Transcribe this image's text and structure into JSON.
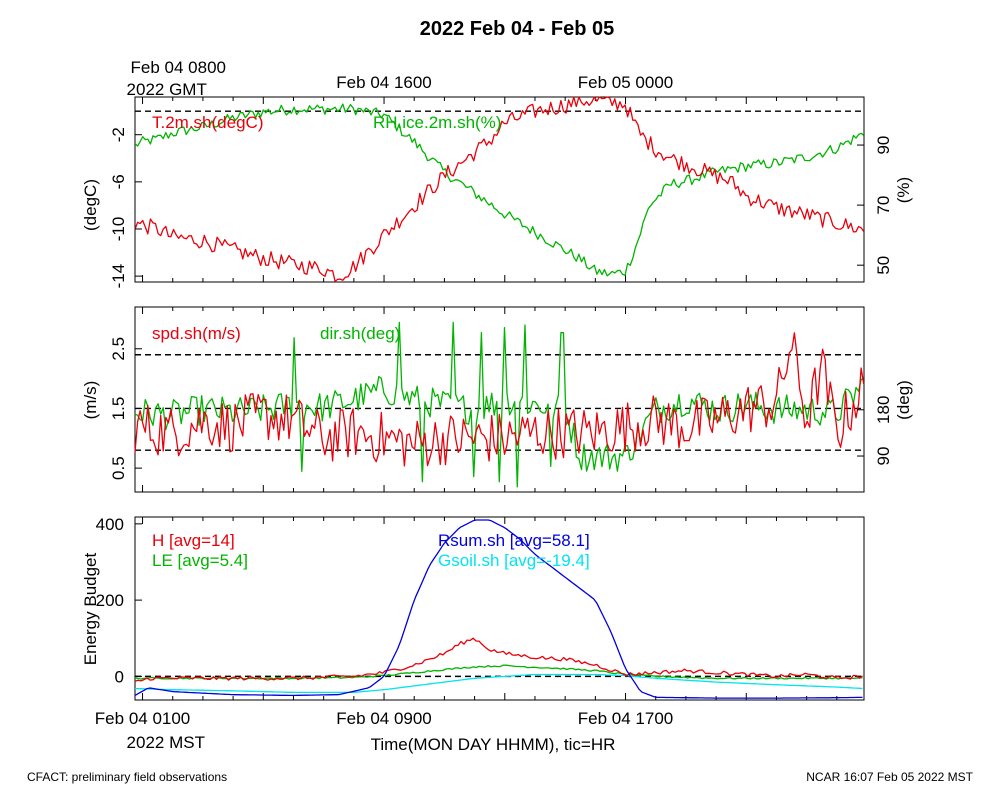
{
  "title": "2022 Feb 04 - Feb 05",
  "footer_left": "CFACT: preliminary field observations",
  "footer_right": "NCAR 16:07 Feb 05 2022 MST",
  "top_axis": {
    "ticks": [
      {
        "hour": 1,
        "line1": "Feb 04 0800",
        "line2": "2022 GMT"
      },
      {
        "hour": 9,
        "line1": "Feb 04 1600",
        "line2": ""
      },
      {
        "hour": 17,
        "line1": "Feb 05 0000",
        "line2": ""
      }
    ]
  },
  "bottom_axis": {
    "ticks": [
      {
        "hour": 1,
        "line1": "Feb 04 0100",
        "line2": "2022 MST"
      },
      {
        "hour": 9,
        "line1": "Feb 04 0900",
        "line2": ""
      },
      {
        "hour": 17,
        "line1": "Feb 04 1700",
        "line2": ""
      }
    ],
    "xlabel": "Time(MON DAY HHMM), tic=HR"
  },
  "colors": {
    "red": "#e8000b",
    "green": "#00b400",
    "blue": "#0000e0",
    "cyan": "#00e5ee",
    "black": "#000000"
  },
  "chart_data": [
    {
      "type": "line",
      "panel": "temperature-humidity",
      "x_unit": "hour (MST, Feb 04)",
      "xlim": [
        0.75,
        24.9
      ],
      "ylabel_left": "(degC)",
      "ylabel_right": "(%)",
      "ylim_left": [
        -14.5,
        1.2
      ],
      "ylim_right": [
        44.4,
        106
      ],
      "yticks_left": [
        -14,
        -10,
        -6,
        -2
      ],
      "yticks_right": [
        50,
        70,
        90
      ],
      "reference_lines": [
        {
          "axis": "left",
          "value": 0
        }
      ],
      "series": [
        {
          "name": "T.2m.sh(degC)",
          "color": "red",
          "axis": "left",
          "x": [
            0.75,
            1.5,
            2.0,
            3.0,
            4.0,
            5.0,
            6.0,
            7.0,
            7.5,
            8.0,
            9.0,
            10.0,
            11.0,
            12.0,
            12.5,
            13.0,
            14.0,
            15.0,
            15.5,
            16.0,
            17.0,
            17.2,
            17.5,
            18.0,
            18.5,
            19.0,
            20.0,
            20.5,
            21.0,
            22.0,
            23.0,
            24.0,
            24.9
          ],
          "y": [
            -9.5,
            -10.0,
            -10.7,
            -11.0,
            -11.8,
            -12.5,
            -13.0,
            -13.4,
            -14.0,
            -13.2,
            -10.5,
            -8.0,
            -5.5,
            -3.5,
            -2.5,
            -1.0,
            0.0,
            0.5,
            0.9,
            0.9,
            0.6,
            -0.6,
            -2.0,
            -3.2,
            -4.0,
            -4.5,
            -5.5,
            -6.0,
            -7.2,
            -8.2,
            -8.8,
            -9.5,
            -10.1
          ],
          "noise": 0.7
        },
        {
          "name": "RH.ice.2m.sh(%)",
          "color": "green",
          "axis": "right",
          "x": [
            0.75,
            1.0,
            1.5,
            2.0,
            3.0,
            4.0,
            5.0,
            6.0,
            7.0,
            8.0,
            9.0,
            10.0,
            11.0,
            12.0,
            13.0,
            14.0,
            15.0,
            15.5,
            16.0,
            16.5,
            17.0,
            17.3,
            17.8,
            18.5,
            19.0,
            20.0,
            21.0,
            22.0,
            23.0,
            24.0,
            24.9
          ],
          "y": [
            90,
            91,
            92,
            94,
            96,
            99,
            101,
            102,
            102,
            102,
            100,
            91,
            81,
            74,
            67,
            61,
            55,
            52,
            48,
            47,
            48,
            55,
            70,
            77,
            78,
            81,
            83,
            84,
            86,
            89,
            94
          ],
          "noise": 1.8
        }
      ],
      "labels": [
        {
          "text": "T.2m.sh(degC)",
          "color": "red"
        },
        {
          "text": "RH.ice.2m.sh(%)",
          "color": "green"
        }
      ]
    },
    {
      "type": "line",
      "panel": "wind",
      "x_unit": "hour (MST, Feb 04)",
      "xlim": [
        0.75,
        24.9
      ],
      "ylabel_left": "(m/s)",
      "ylabel_right": "(deg)",
      "ylim_left": [
        0.1,
        3.2
      ],
      "ylim_right": [
        20,
        380
      ],
      "yticks_left": [
        0.5,
        1.5,
        2.5
      ],
      "yticks_right": [
        90,
        180
      ],
      "reference_lines": [
        {
          "axis": "left",
          "value": 0.8
        },
        {
          "axis": "left",
          "value": 1.5
        },
        {
          "axis": "left",
          "value": 2.4
        }
      ],
      "series": [
        {
          "name": "spd.sh(m/s)",
          "color": "red",
          "axis": "left",
          "x": [
            0.75,
            2,
            3,
            4,
            5,
            6,
            7,
            8,
            9,
            10,
            11,
            12,
            13,
            14,
            15,
            16,
            17,
            18,
            19,
            20,
            21,
            22,
            22.5,
            23,
            23.5,
            24,
            24.9
          ],
          "y": [
            1.2,
            1.1,
            1.3,
            1.2,
            1.4,
            1.3,
            1.0,
            1.1,
            1.0,
            0.9,
            1.0,
            1.0,
            1.0,
            1.1,
            1.1,
            1.1,
            1.2,
            1.3,
            1.2,
            1.3,
            1.5,
            1.6,
            2.6,
            1.3,
            2.2,
            1.1,
            1.9
          ],
          "noise": 0.45
        },
        {
          "name": "dir.sh(deg)",
          "color": "green",
          "axis": "right",
          "x": [
            0.75,
            2,
            3,
            4,
            5,
            6,
            7,
            8,
            9,
            10,
            11,
            12,
            13,
            14,
            15,
            15.5,
            16,
            16.5,
            17,
            18,
            19,
            20,
            21,
            22,
            23,
            24,
            24.9
          ],
          "y": [
            175,
            170,
            180,
            175,
            180,
            190,
            185,
            200,
            220,
            200,
            190,
            180,
            200,
            190,
            180,
            90,
            90,
            88,
            90,
            180,
            200,
            180,
            190,
            180,
            180,
            175,
            230
          ],
          "noise": 30,
          "spikes": [
            [
              6,
              320
            ],
            [
              6.3,
              60
            ],
            [
              9.5,
              350
            ],
            [
              10.3,
              40
            ],
            [
              11.3,
              350
            ],
            [
              12.0,
              50
            ],
            [
              12.2,
              330
            ],
            [
              12.8,
              40
            ],
            [
              13.0,
              340
            ],
            [
              13.4,
              30
            ],
            [
              13.7,
              345
            ],
            [
              14.5,
              70
            ],
            [
              14.9,
              330
            ]
          ]
        }
      ],
      "labels": [
        {
          "text": "spd.sh(m/s)",
          "color": "red"
        },
        {
          "text": "dir.sh(deg)",
          "color": "green"
        }
      ]
    },
    {
      "type": "line",
      "panel": "energy-budget",
      "x_unit": "hour (MST, Feb 04)",
      "xlim": [
        0.75,
        24.9
      ],
      "ylabel": "Energy Budget",
      "ylim": [
        -62,
        418
      ],
      "yticks": [
        0,
        200,
        400
      ],
      "reference_lines": [
        {
          "value": 0
        }
      ],
      "series": [
        {
          "name": "H",
          "avg_label": "H [avg=14]",
          "color": "red",
          "x": [
            0.75,
            1.2,
            3,
            6,
            8,
            9,
            10,
            11,
            11.5,
            12,
            12.5,
            13,
            14,
            15,
            16,
            17,
            18,
            19,
            20,
            21,
            22,
            23,
            24,
            24.9
          ],
          "y": [
            -15,
            -5,
            -5,
            -5,
            0,
            10,
            30,
            60,
            85,
            100,
            70,
            60,
            50,
            45,
            30,
            5,
            10,
            15,
            10,
            5,
            0,
            5,
            -5,
            0
          ],
          "noise": 5
        },
        {
          "name": "LE",
          "avg_label": "LE [avg=5.4]",
          "color": "green",
          "x": [
            0.75,
            3,
            6,
            8,
            9,
            10,
            11,
            12,
            13,
            14,
            15,
            16,
            17,
            18,
            20,
            22,
            24,
            24.9
          ],
          "y": [
            -5,
            -5,
            -5,
            -3,
            2,
            10,
            18,
            25,
            28,
            24,
            20,
            15,
            5,
            0,
            -5,
            -5,
            -5,
            -5
          ],
          "noise": 2
        },
        {
          "name": "Rsum.sh",
          "avg_label": "Rsum.sh [avg=58.1]",
          "color": "blue",
          "x": [
            0.75,
            1.2,
            2,
            4,
            6,
            7.5,
            8.5,
            9,
            9.5,
            10,
            10.5,
            11,
            11.5,
            12,
            12.5,
            13,
            13.5,
            14,
            14.5,
            15,
            15.5,
            16,
            16.5,
            17,
            17.5,
            18,
            20,
            22,
            24,
            24.9
          ],
          "y": [
            -50,
            -30,
            -40,
            -48,
            -50,
            -48,
            -30,
            0,
            80,
            200,
            290,
            350,
            390,
            410,
            410,
            390,
            360,
            320,
            290,
            260,
            230,
            200,
            120,
            20,
            -40,
            -55,
            -57,
            -57,
            -56,
            -55
          ],
          "noise": 0
        },
        {
          "name": "Gsoil.sh",
          "avg_label": "Gsoil.sh [avg=-19.4]",
          "color": "cyan",
          "x": [
            0.75,
            2,
            4,
            6,
            8,
            9,
            10,
            11,
            12,
            13,
            14,
            15,
            16,
            17,
            18,
            20,
            22,
            24,
            24.9
          ],
          "y": [
            -32,
            -35,
            -38,
            -42,
            -42,
            -35,
            -25,
            -15,
            -5,
            0,
            5,
            5,
            5,
            2,
            -5,
            -15,
            -22,
            -28,
            -32
          ],
          "noise": 0
        }
      ],
      "labels": [
        {
          "text": "H [avg=14]",
          "color": "red"
        },
        {
          "text": "LE [avg=5.4]",
          "color": "green"
        },
        {
          "text": "Rsum.sh [avg=58.1]",
          "color": "blue"
        },
        {
          "text": "Gsoil.sh [avg=-19.4]",
          "color": "cyan"
        }
      ]
    }
  ]
}
